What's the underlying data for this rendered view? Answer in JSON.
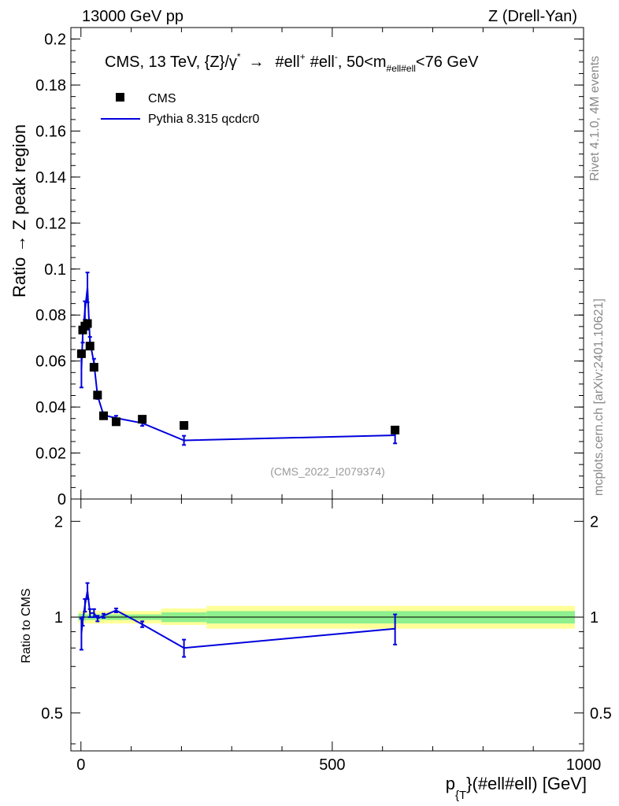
{
  "header": {
    "left": "13000 GeV pp",
    "right": "Z (Drell-Yan)"
  },
  "side": {
    "rivet": "Rivet 4.1.0,  4M events",
    "mcplots": "mcplots.cern.ch [arXiv:2401.10621]"
  },
  "colors": {
    "mc": "#0000dd",
    "band_inner": "#8ef08e",
    "band_outer": "#ffff99"
  },
  "chart_data": [
    {
      "type": "scatter",
      "title": "CMS, 13 TeV, {Z}/γ* → #ell+ #ell-, 50<m#ell#ell<76 GeV",
      "title_parts": {
        "main": "CMS, 13 TeV, {Z}/γ",
        "sup_star": "*",
        "arrow": "→",
        "ell1": "#ell",
        "sup_plus": "+",
        "ell2": "#ell",
        "sup_minus": "-",
        "mid": ", 50<m",
        "sub": "#ell#ell",
        "end": "<76 GeV"
      },
      "ylabel": "Ratio → Z peak region",
      "xlim": [
        -20,
        1000
      ],
      "ylim": [
        0,
        0.205
      ],
      "yticks": [
        0,
        0.02,
        0.04,
        0.06,
        0.08,
        0.1,
        0.12,
        0.14,
        0.16,
        0.18,
        0.2
      ],
      "ytick_labels": [
        "0",
        "0.02",
        "0.04",
        "0.06",
        "0.08",
        "0.1",
        "0.12",
        "0.14",
        "0.16",
        "0.18",
        "0.2"
      ],
      "watermark": "(CMS_2022_I2079374)",
      "legend": {
        "position": "top-left",
        "entries": [
          "CMS",
          "Pythia 8.315 qcdcr0"
        ]
      },
      "series": [
        {
          "name": "CMS",
          "marker": "square",
          "x": [
            1,
            3.5,
            8,
            13,
            18,
            26,
            33,
            45,
            70,
            122,
            205,
            625
          ],
          "y": [
            0.0632,
            0.0735,
            0.0752,
            0.0763,
            0.0665,
            0.0573,
            0.0452,
            0.0362,
            0.0336,
            0.0347,
            0.032,
            0.03
          ]
        },
        {
          "name": "Pythia 8.315 qcdcr0",
          "marker": "line",
          "x": [
            1,
            3.5,
            8,
            13,
            18,
            26,
            33,
            45,
            70,
            122,
            205,
            625
          ],
          "y": [
            0.0565,
            0.071,
            0.082,
            0.092,
            0.0685,
            0.059,
            0.045,
            0.0365,
            0.0352,
            0.033,
            0.0255,
            0.0277
          ],
          "yerr": [
            0.008,
            0.003,
            0.004,
            0.0065,
            0.002,
            0.002,
            0.0015,
            0.001,
            0.001,
            0.0012,
            0.002,
            0.0035
          ]
        }
      ]
    },
    {
      "type": "line",
      "ylabel": "Ratio to CMS",
      "xlabel": "p_{T}(#ell#ell) [GeV]",
      "xlabel_parts": {
        "p": "p",
        "sub": "{T",
        "rest": "}(#ell#ell) [GeV]"
      },
      "xlim": [
        -20,
        1000
      ],
      "ylim": [
        0.38,
        2.35
      ],
      "log_y": true,
      "xticks": [
        0,
        500,
        1000
      ],
      "xtick_labels": [
        "0",
        "500",
        "1000"
      ],
      "yticks": [
        0.5,
        1,
        2
      ],
      "ytick_labels": [
        "0.5",
        "1",
        "2"
      ],
      "bands": [
        {
          "x0": -5,
          "x1": 10,
          "inner": [
            0.975,
            1.025
          ],
          "outer": [
            0.955,
            1.045
          ]
        },
        {
          "x0": 10,
          "x1": 160,
          "inner": [
            0.98,
            1.02
          ],
          "outer": [
            0.955,
            1.045
          ]
        },
        {
          "x0": 160,
          "x1": 250,
          "inner": [
            0.965,
            1.035
          ],
          "outer": [
            0.945,
            1.065
          ]
        },
        {
          "x0": 250,
          "x1": 1000,
          "inner": [
            0.955,
            1.045
          ],
          "outer": [
            0.92,
            1.085
          ]
        }
      ],
      "series": [
        {
          "name": "Pythia 8.315 qcdcr0",
          "x": [
            1,
            3.5,
            8,
            13,
            18,
            26,
            33,
            45,
            70,
            122,
            205,
            625
          ],
          "y": [
            0.89,
            0.97,
            1.09,
            1.21,
            1.03,
            1.03,
            0.99,
            1.01,
            1.05,
            0.95,
            0.8,
            0.92
          ],
          "yerr": [
            0.1,
            0.03,
            0.05,
            0.07,
            0.03,
            0.03,
            0.02,
            0.015,
            0.015,
            0.02,
            0.05,
            0.1
          ]
        }
      ]
    }
  ]
}
